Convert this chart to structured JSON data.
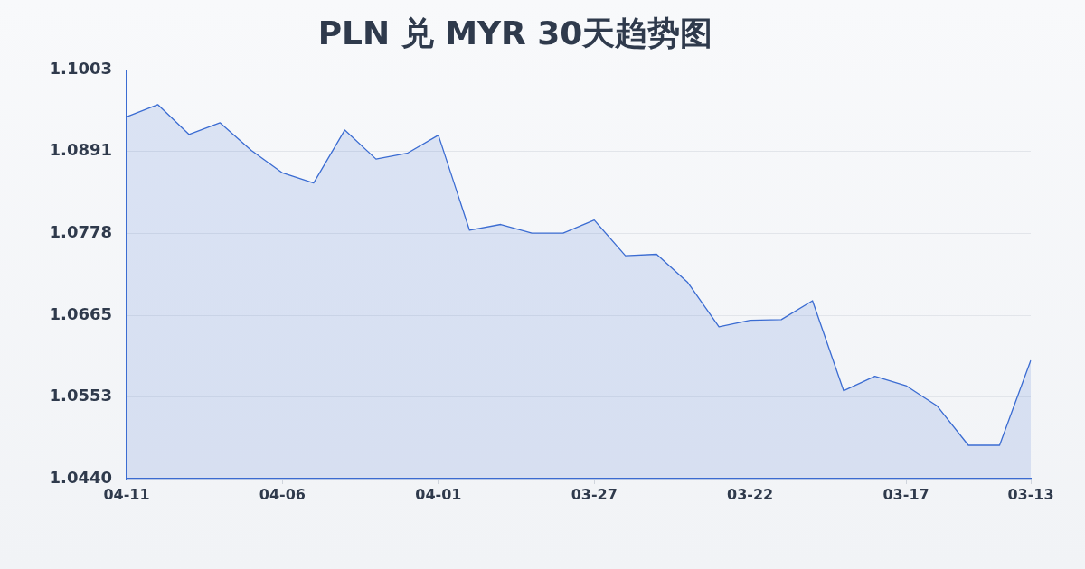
{
  "chart_data": {
    "type": "area",
    "title": "PLN 兑 MYR 30天趋势图",
    "categories": [
      "04-11",
      null,
      null,
      null,
      null,
      "04-06",
      null,
      null,
      null,
      null,
      "04-01",
      null,
      null,
      null,
      null,
      "03-27",
      null,
      null,
      null,
      null,
      "03-22",
      null,
      null,
      null,
      null,
      "03-17",
      null,
      null,
      null,
      "03-13"
    ],
    "values": [
      1.0938,
      1.0955,
      1.0914,
      1.093,
      1.0892,
      1.0861,
      1.0847,
      1.092,
      1.088,
      1.0888,
      1.0913,
      1.0782,
      1.079,
      1.0778,
      1.0778,
      1.0796,
      1.0747,
      1.0749,
      1.071,
      1.0649,
      1.0658,
      1.0659,
      1.0685,
      1.0561,
      1.0581,
      1.0568,
      1.054,
      1.0486,
      1.0486,
      1.0603
    ],
    "color": "#3b6cd2",
    "ylim": [
      1.044,
      1.1003
    ],
    "yticks": [
      {
        "value": 1.044,
        "label": "1.0440"
      },
      1.0553,
      1.0665,
      1.0778,
      1.0891,
      1.1003
    ],
    "grid": "y",
    "legend": false
  }
}
